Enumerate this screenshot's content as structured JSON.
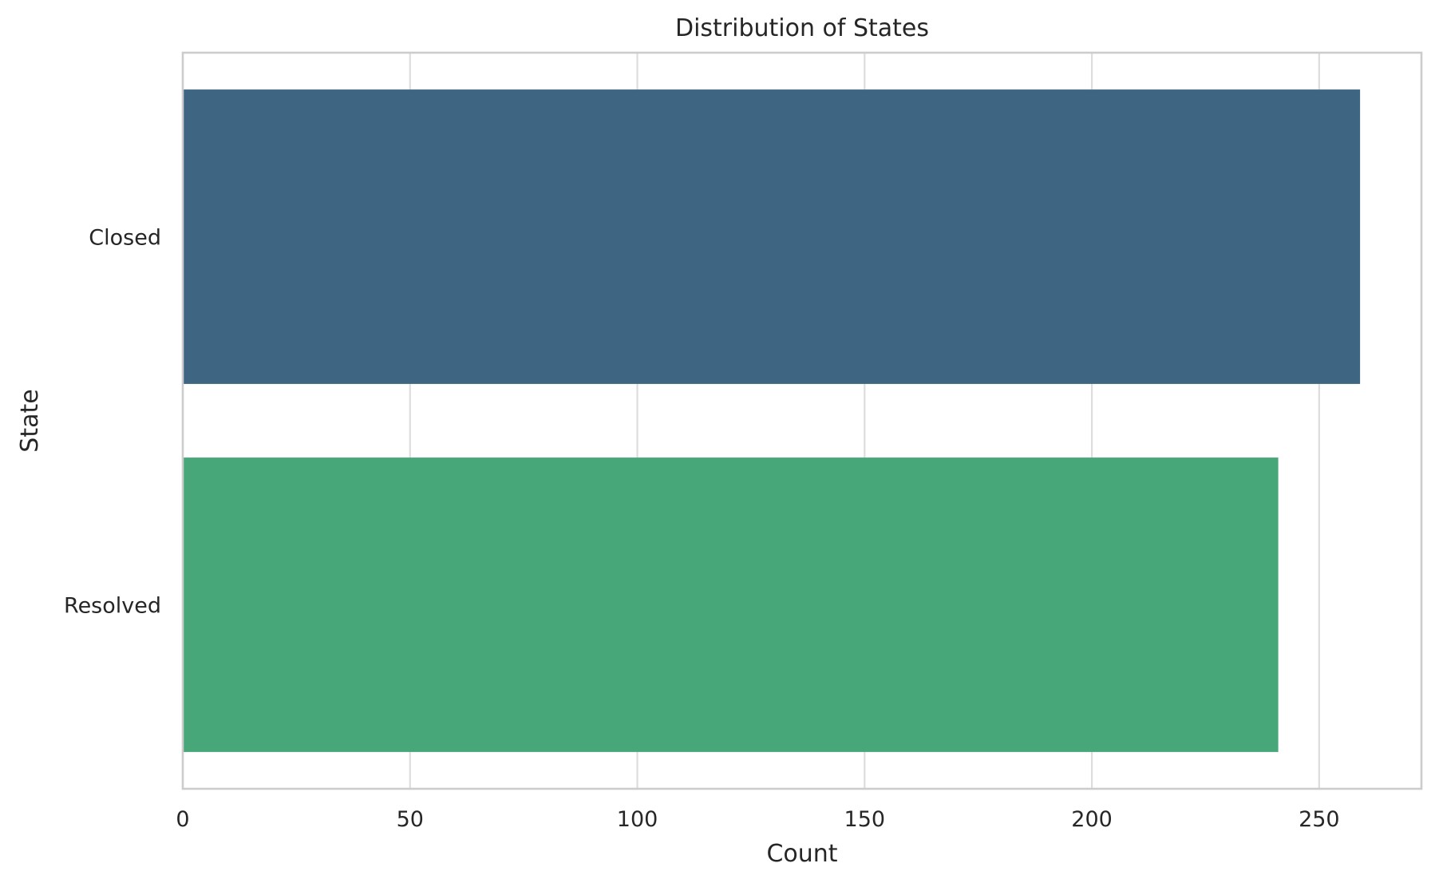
{
  "chart_data": {
    "type": "bar",
    "orientation": "horizontal",
    "title": "Distribution of States",
    "xlabel": "Count",
    "ylabel": "State",
    "categories": [
      "Closed",
      "Resolved"
    ],
    "values": [
      259,
      241
    ],
    "colors": [
      "#3e6683",
      "#47a778"
    ],
    "xlim": [
      0,
      272.5
    ],
    "xticks": [
      0,
      50,
      100,
      150,
      200,
      250
    ],
    "grid": true,
    "grid_axis": "x",
    "legend": "none"
  }
}
